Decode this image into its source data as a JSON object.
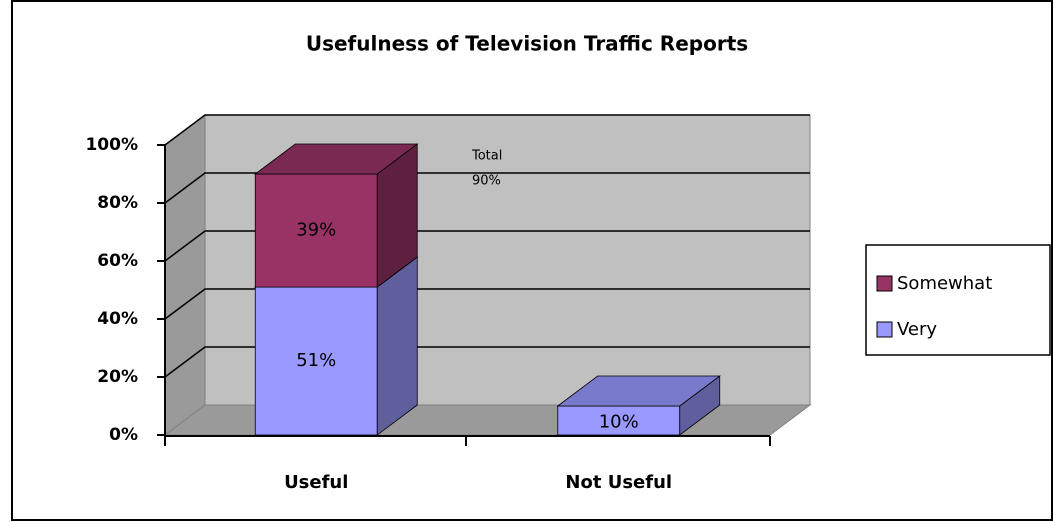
{
  "chart_data": {
    "type": "bar3d_stacked",
    "title": "Usefulness of Television Traffic Reports",
    "categories": [
      "Useful",
      "Not Useful"
    ],
    "series": [
      {
        "name": "Very",
        "color": "#9999ff",
        "values": [
          51,
          10
        ],
        "value_labels": [
          "51%",
          "10%"
        ]
      },
      {
        "name": "Somewhat",
        "color": "#993366",
        "values": [
          39,
          null
        ],
        "value_labels": [
          "39%",
          null
        ]
      }
    ],
    "annotation": {
      "label": "Total",
      "value": 90,
      "value_label": "90%"
    },
    "ylim": [
      0,
      100
    ],
    "yticks": [
      {
        "value": 0,
        "label": "0%"
      },
      {
        "value": 20,
        "label": "20%"
      },
      {
        "value": 40,
        "label": "40%"
      },
      {
        "value": 60,
        "label": "60%"
      },
      {
        "value": 80,
        "label": "80%"
      },
      {
        "value": 100,
        "label": "100%"
      }
    ],
    "grid": true,
    "legend": "right"
  }
}
